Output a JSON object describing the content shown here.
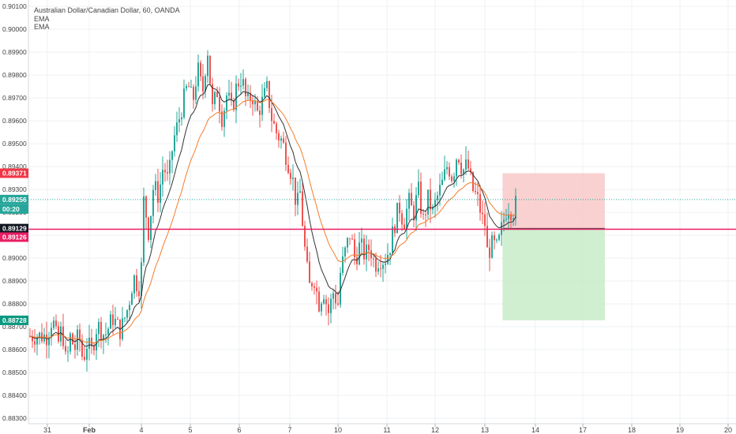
{
  "legend": {
    "title": "Australian Dollar/Canadian Dollar, 60, OANDA",
    "ema1": "EMA",
    "ema2": "EMA"
  },
  "colors": {
    "up": "#26a69a",
    "down": "#ef5350",
    "ema_fast": "#333333",
    "ema_slow": "#f57c2b",
    "level": "#e91e63",
    "stop_zone": "#f8c9c9",
    "target_zone": "#c8ebc8"
  },
  "chart_data": {
    "type": "candlestick",
    "symbol": "Australian Dollar/Canadian Dollar, 60, OANDA",
    "indicators": [
      "EMA",
      "EMA"
    ],
    "ylim": [
      0.88276,
      0.90128
    ],
    "y_ticks": [
      "0.90100",
      "0.90000",
      "0.89900",
      "0.89800",
      "0.89700",
      "0.89600",
      "0.89500",
      "0.89400",
      "0.89300",
      "0.89200",
      "0.89100",
      "0.89000",
      "0.88900",
      "0.88800",
      "0.88700",
      "0.88600",
      "0.88500",
      "0.88400",
      "0.88300"
    ],
    "x_ticks": [
      {
        "label": "31",
        "day": 0
      },
      {
        "label": "Feb",
        "day": 1
      },
      {
        "label": "4",
        "day": 2
      },
      {
        "label": "5",
        "day": 3
      },
      {
        "label": "6",
        "day": 4
      },
      {
        "label": "7",
        "day": 5
      },
      {
        "label": "10",
        "day": 6
      },
      {
        "label": "11",
        "day": 7
      },
      {
        "label": "12",
        "day": 8
      },
      {
        "label": "13",
        "day": 9
      },
      {
        "label": "14",
        "day": 10
      },
      {
        "label": "17",
        "day": 11
      },
      {
        "label": "18",
        "day": 12
      },
      {
        "label": "19",
        "day": 13
      },
      {
        "label": "20",
        "day": 14
      }
    ],
    "price_tags": [
      {
        "label": "0.89371",
        "value": 0.89371,
        "color": "#f23645"
      },
      {
        "label": "0.89256",
        "value": 0.89256,
        "color": "#26a69a"
      },
      {
        "label": "00:20",
        "value": 0.89182,
        "color": "#26a69a"
      },
      {
        "label": "0.89129",
        "value": 0.89129,
        "color": "#131722"
      },
      {
        "label": "0.89126",
        "value": 0.89126,
        "color": "#e91e63"
      },
      {
        "label": "0.88728",
        "value": 0.88728,
        "color": "#089981"
      }
    ],
    "horizontal_level": 0.89126,
    "current_price": 0.89256,
    "position": {
      "entry": 0.89129,
      "stop": 0.89371,
      "target": 0.88728,
      "start_day": 9.35,
      "end_day": 11.45
    },
    "path": [
      [
        0.0,
        0.8866
      ],
      [
        0.12,
        0.8874
      ],
      [
        0.25,
        0.8862
      ],
      [
        0.35,
        0.887
      ],
      [
        0.45,
        0.8853
      ],
      [
        0.55,
        0.8866
      ],
      [
        0.65,
        0.886
      ],
      [
        0.75,
        0.8867
      ],
      [
        0.85,
        0.8855
      ],
      [
        0.95,
        0.8863
      ],
      [
        1.05,
        0.8859
      ],
      [
        1.15,
        0.8871
      ],
      [
        1.3,
        0.8866
      ],
      [
        1.45,
        0.8874
      ],
      [
        1.6,
        0.8868
      ],
      [
        1.75,
        0.8879
      ],
      [
        1.85,
        0.8892
      ],
      [
        1.95,
        0.8887
      ],
      [
        2.0,
        0.8896
      ],
      [
        2.05,
        0.8926
      ],
      [
        2.15,
        0.8911
      ],
      [
        2.25,
        0.8932
      ],
      [
        2.35,
        0.8927
      ],
      [
        2.45,
        0.8941
      ],
      [
        2.55,
        0.8933
      ],
      [
        2.65,
        0.8951
      ],
      [
        2.75,
        0.8959
      ],
      [
        2.85,
        0.8968
      ],
      [
        2.95,
        0.8976
      ],
      [
        3.05,
        0.8968
      ],
      [
        3.15,
        0.8983
      ],
      [
        3.25,
        0.8972
      ],
      [
        3.35,
        0.8992
      ],
      [
        3.45,
        0.8965
      ],
      [
        3.55,
        0.8973
      ],
      [
        3.65,
        0.8961
      ],
      [
        3.75,
        0.8972
      ],
      [
        3.85,
        0.8964
      ],
      [
        3.95,
        0.8976
      ],
      [
        4.05,
        0.8979
      ],
      [
        4.15,
        0.8967
      ],
      [
        4.25,
        0.8972
      ],
      [
        4.35,
        0.8963
      ],
      [
        4.45,
        0.8968
      ],
      [
        4.55,
        0.8974
      ],
      [
        4.65,
        0.896
      ],
      [
        4.75,
        0.8954
      ],
      [
        4.85,
        0.8951
      ],
      [
        4.95,
        0.8943
      ],
      [
        5.05,
        0.8936
      ],
      [
        5.15,
        0.8921
      ],
      [
        5.2,
        0.8932
      ],
      [
        5.3,
        0.8906
      ],
      [
        5.4,
        0.8887
      ],
      [
        5.5,
        0.8892
      ],
      [
        5.6,
        0.888
      ],
      [
        5.7,
        0.8886
      ],
      [
        5.8,
        0.8876
      ],
      [
        5.9,
        0.8885
      ],
      [
        6.0,
        0.888
      ],
      [
        6.05,
        0.8894
      ],
      [
        6.15,
        0.8903
      ],
      [
        6.25,
        0.8911
      ],
      [
        6.35,
        0.8899
      ],
      [
        6.45,
        0.8906
      ],
      [
        6.55,
        0.8901
      ],
      [
        6.65,
        0.8905
      ],
      [
        6.75,
        0.8897
      ],
      [
        6.85,
        0.89
      ],
      [
        6.95,
        0.8899
      ],
      [
        7.05,
        0.8904
      ],
      [
        7.15,
        0.8914
      ],
      [
        7.25,
        0.8923
      ],
      [
        7.35,
        0.8915
      ],
      [
        7.45,
        0.8925
      ],
      [
        7.55,
        0.8919
      ],
      [
        7.65,
        0.893
      ],
      [
        7.75,
        0.8916
      ],
      [
        7.85,
        0.8926
      ],
      [
        7.95,
        0.892
      ],
      [
        8.05,
        0.8927
      ],
      [
        8.15,
        0.8933
      ],
      [
        8.25,
        0.8941
      ],
      [
        8.35,
        0.8935
      ],
      [
        8.45,
        0.8947
      ],
      [
        8.55,
        0.8938
      ],
      [
        8.65,
        0.8941
      ],
      [
        8.75,
        0.893
      ],
      [
        8.85,
        0.8926
      ],
      [
        8.95,
        0.8917
      ],
      [
        9.0,
        0.8915
      ],
      [
        9.05,
        0.8902
      ],
      [
        9.15,
        0.8906
      ],
      [
        9.25,
        0.8904
      ],
      [
        9.35,
        0.8915
      ],
      [
        9.45,
        0.8923
      ],
      [
        9.55,
        0.892
      ],
      [
        9.65,
        0.8926
      ]
    ]
  }
}
